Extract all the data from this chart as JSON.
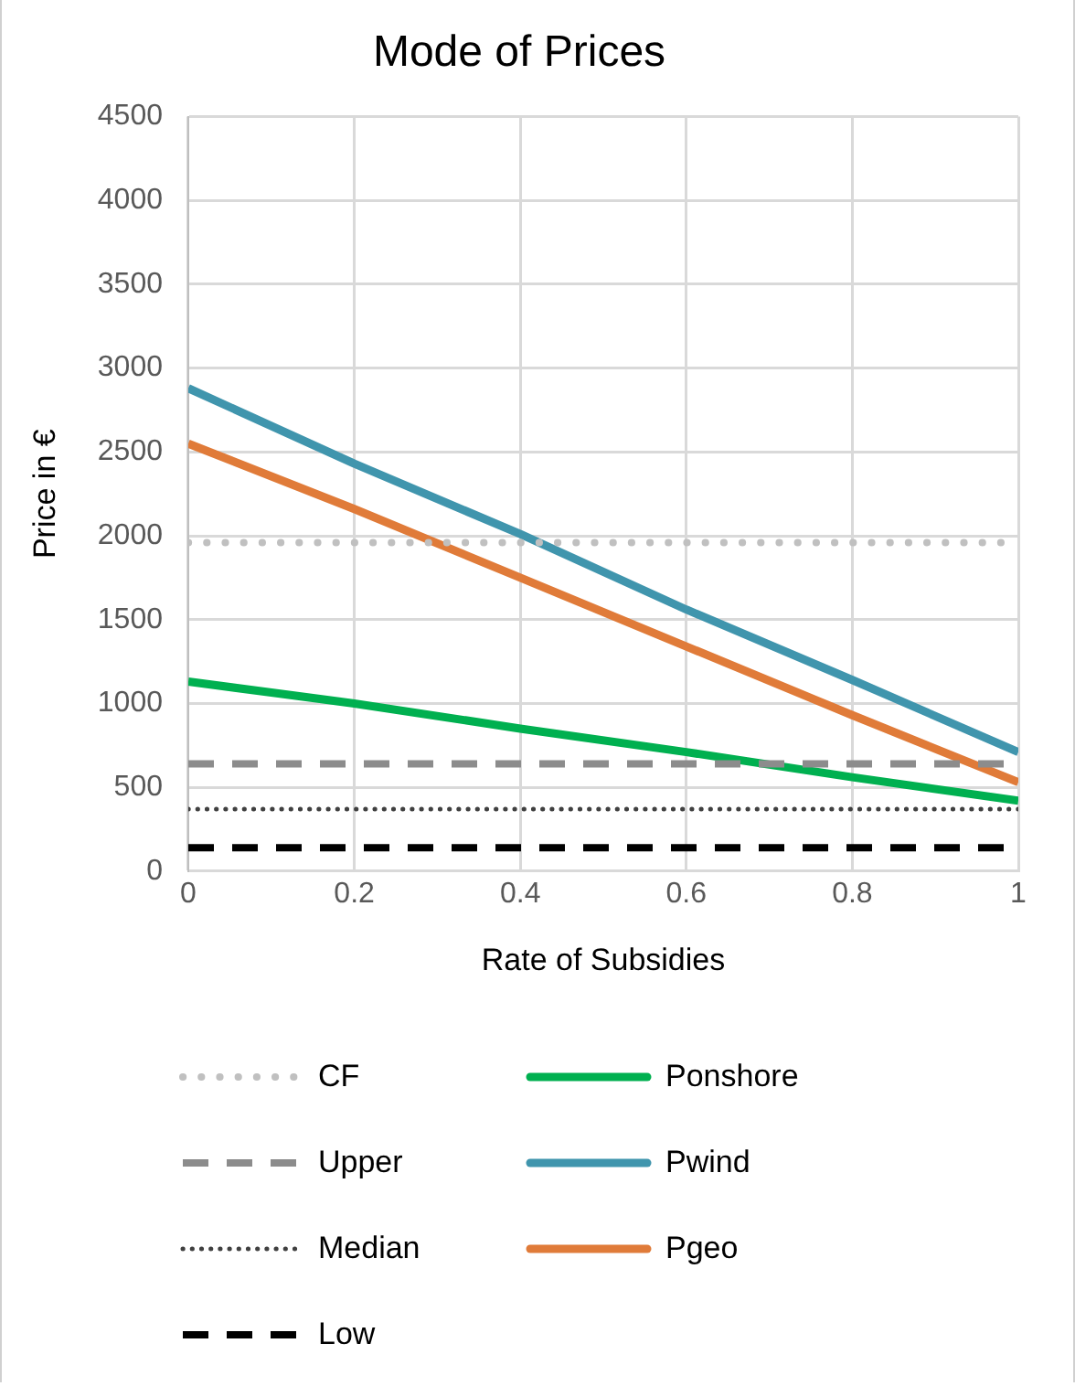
{
  "chart_data": {
    "type": "line",
    "title": "Mode of Prices",
    "xlabel": "Rate of Subsidies",
    "ylabel": "Price in €",
    "x": [
      0,
      0.2,
      0.4,
      0.6,
      0.8,
      1
    ],
    "xlim": [
      0,
      1
    ],
    "xticks": [
      0,
      0.2,
      0.4,
      0.6,
      0.8,
      1
    ],
    "ylim": [
      0,
      4500
    ],
    "yticks": [
      0,
      500,
      1000,
      1500,
      2000,
      2500,
      3000,
      3500,
      4000,
      4500
    ],
    "grid": true,
    "legend": "bottom",
    "marker": "none",
    "series": [
      {
        "name": "CF",
        "color": "#c0c0c0",
        "line_style": "dotted",
        "values": [
          1960,
          1960,
          1960,
          1960,
          1960,
          1960
        ]
      },
      {
        "name": "Upper",
        "color": "#8c8c8c",
        "line_style": "dashed",
        "values": [
          640,
          640,
          640,
          640,
          640,
          640
        ]
      },
      {
        "name": "Median",
        "color": "#404040",
        "line_style": "dotted",
        "values": [
          370,
          370,
          370,
          370,
          370,
          370
        ]
      },
      {
        "name": "Low",
        "color": "#000000",
        "line_style": "dashed",
        "values": [
          140,
          140,
          140,
          140,
          140,
          140
        ]
      },
      {
        "name": "Ponshore",
        "color": "#00b050",
        "line_style": "solid",
        "values": [
          1130,
          1000,
          850,
          710,
          560,
          420
        ]
      },
      {
        "name": "Pwind",
        "color": "#4095ad",
        "line_style": "solid",
        "values": [
          2880,
          2430,
          2010,
          1560,
          1140,
          710
        ]
      },
      {
        "name": "Pgeo",
        "color": "#e07b39",
        "line_style": "solid",
        "values": [
          2550,
          2160,
          1750,
          1340,
          930,
          530
        ]
      }
    ]
  }
}
